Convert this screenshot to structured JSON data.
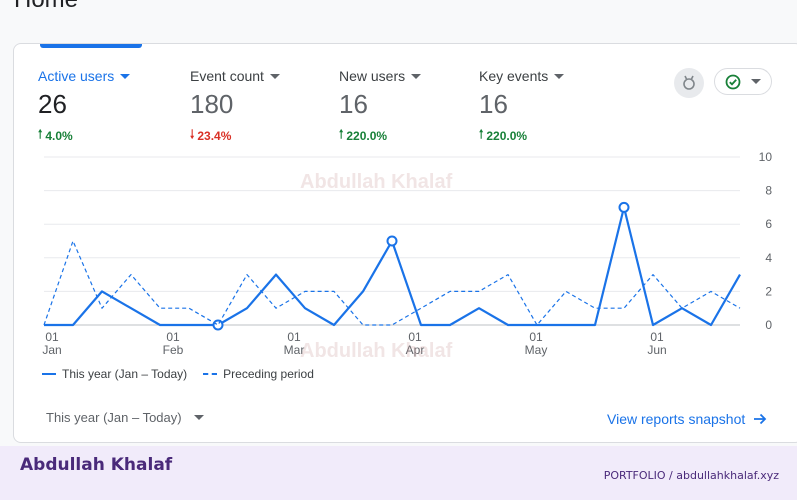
{
  "page": {
    "title": "Home"
  },
  "metrics": [
    {
      "label": "Active users",
      "value": "26",
      "change": "4.0%",
      "direction": "up"
    },
    {
      "label": "Event count",
      "value": "180",
      "change": "23.4%",
      "direction": "down"
    },
    {
      "label": "New users",
      "value": "16",
      "change": "220.0%",
      "direction": "up"
    },
    {
      "label": "Key events",
      "value": "16",
      "change": "220.0%",
      "direction": "up"
    }
  ],
  "toolbar": {
    "insights_icon": "badge-icon",
    "compare_icon": "check-circle-icon"
  },
  "chart_data": {
    "type": "line",
    "x_tick_labels": [
      {
        "day": "01",
        "month": "Jan"
      },
      {
        "day": "01",
        "month": "Feb"
      },
      {
        "day": "01",
        "month": "Mar"
      },
      {
        "day": "01",
        "month": "Apr"
      },
      {
        "day": "01",
        "month": "May"
      },
      {
        "day": "01",
        "month": "Jun"
      }
    ],
    "y_ticks": [
      0,
      2,
      4,
      6,
      8,
      10
    ],
    "ylim": [
      0,
      10
    ],
    "grid": true,
    "series": [
      {
        "name": "This year (Jan – Today)",
        "style": "solid",
        "values": [
          0,
          0,
          2,
          1,
          0,
          0,
          0,
          1,
          3,
          1,
          0,
          2,
          5,
          0,
          0,
          1,
          0,
          0,
          0,
          0,
          7,
          0,
          1,
          0,
          3
        ],
        "markers": [
          6,
          12,
          20
        ]
      },
      {
        "name": "Preceding period",
        "style": "dashed",
        "values": [
          0,
          5,
          1,
          3,
          1,
          1,
          0,
          3,
          1,
          2,
          2,
          0,
          0,
          1,
          2,
          2,
          3,
          0,
          2,
          1,
          1,
          3,
          1,
          2,
          1
        ]
      }
    ],
    "color": "#1a73e8"
  },
  "legend": {
    "this_period": "This year (Jan – Today)",
    "previous_period": "Preceding period"
  },
  "footer_controls": {
    "date_range": "This year (Jan – Today)",
    "view_link": "View reports snapshot"
  },
  "watermark": "Abdullah Khalaf",
  "site_footer": {
    "brand": "Abdullah Khalaf",
    "right_text": "PORTFOLIO  /  abdullahkhalaf.xyz"
  },
  "colors": {
    "accent": "#1a73e8",
    "positive": "#188038",
    "negative": "#d93025",
    "footer_bg": "#f1ebfa"
  }
}
